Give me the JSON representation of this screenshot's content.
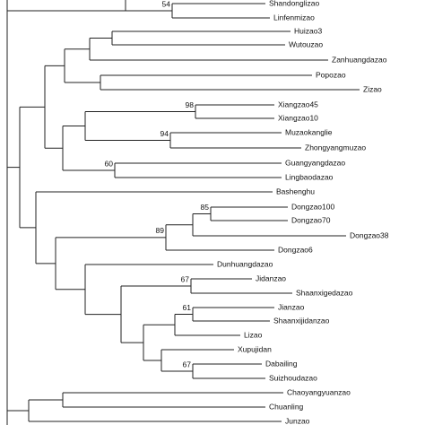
{
  "tree": {
    "leaves": [
      "Shandonglizao",
      "Linfenmizao",
      "Huizao3",
      "Wutouzao",
      "Zanhuangdazao",
      "Popozao",
      "Zizao",
      "Xiangzao45",
      "Xiangzao10",
      "Muzaokanglie",
      "Zhongyangmuzao",
      "Guangyangdazao",
      "Lingbaodazao",
      "Bashenghu",
      "Dongzao100",
      "Dongzao70",
      "Dongzao38",
      "Dongzao6",
      "Dunhuangdazao",
      "Jidanzao",
      "Shaanxigedazao",
      "Jianzao",
      "Shaanxijidanzao",
      "Lizao",
      "Xupujidan",
      "Dabailing",
      "Suizhoudazao",
      "Chaoyangyuanzao",
      "Chuanling",
      "Junzao"
    ],
    "bootstraps": [
      54,
      98,
      94,
      60,
      85,
      89,
      67,
      61,
      67
    ]
  }
}
